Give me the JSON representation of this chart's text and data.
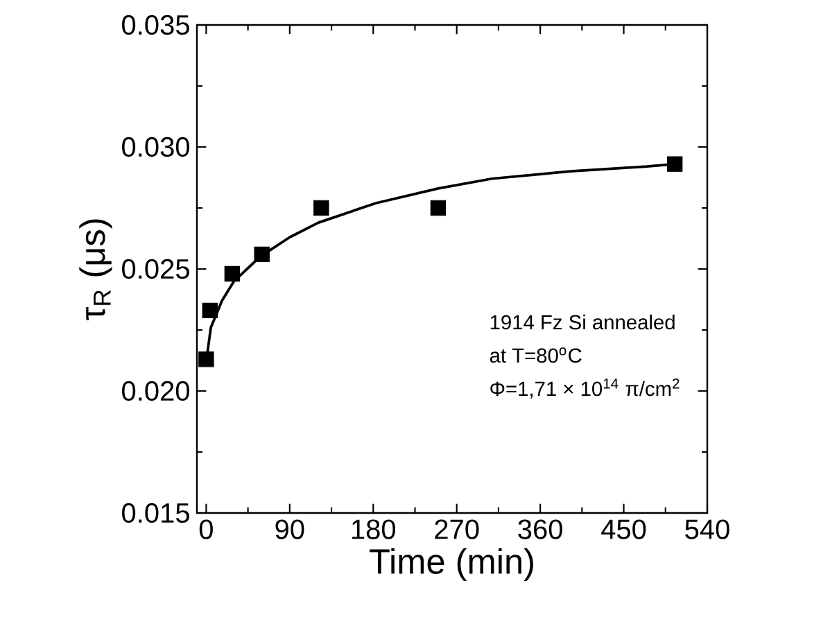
{
  "chart_data": {
    "type": "scatter",
    "xlabel": "Time (min)",
    "ylabel": "τ$_{R}$ (μs)",
    "series": [
      {
        "color": "#000000",
        "marker": "square",
        "x": [
          0,
          4,
          28,
          60,
          124,
          250,
          505
        ],
        "values": [
          0.0213,
          0.0233,
          0.0248,
          0.0256,
          0.0275,
          0.0275,
          0.0293
        ]
      },
      {
        "type": "line",
        "color": "#000000",
        "marker": "none",
        "line_style": "solid",
        "x": [
          0,
          5,
          17,
          30,
          58,
          90,
          121,
          183,
          250,
          308,
          392,
          475,
          505
        ],
        "values": [
          0.0212,
          0.0226,
          0.0237,
          0.0245,
          0.0255,
          0.0263,
          0.0269,
          0.0277,
          0.0283,
          0.0287,
          0.029,
          0.0292,
          0.0293
        ]
      }
    ],
    "xlim": [
      -10,
      540
    ],
    "xticks": [
      0,
      90,
      180,
      270,
      360,
      450,
      540
    ],
    "ylim": [
      0.015,
      0.035
    ],
    "yticks": [
      0.015,
      {
        "value": 0.02,
        "label": "0.020"
      },
      0.025,
      {
        "value": 0.03,
        "label": "0.030"
      },
      0.035
    ],
    "grid": false,
    "annotations": [
      "1914 Fz Si annealed",
      "at T=80$^{o}$C",
      "Φ=1,71 × 10$^{14}$ π/cm$^{2}$"
    ]
  }
}
